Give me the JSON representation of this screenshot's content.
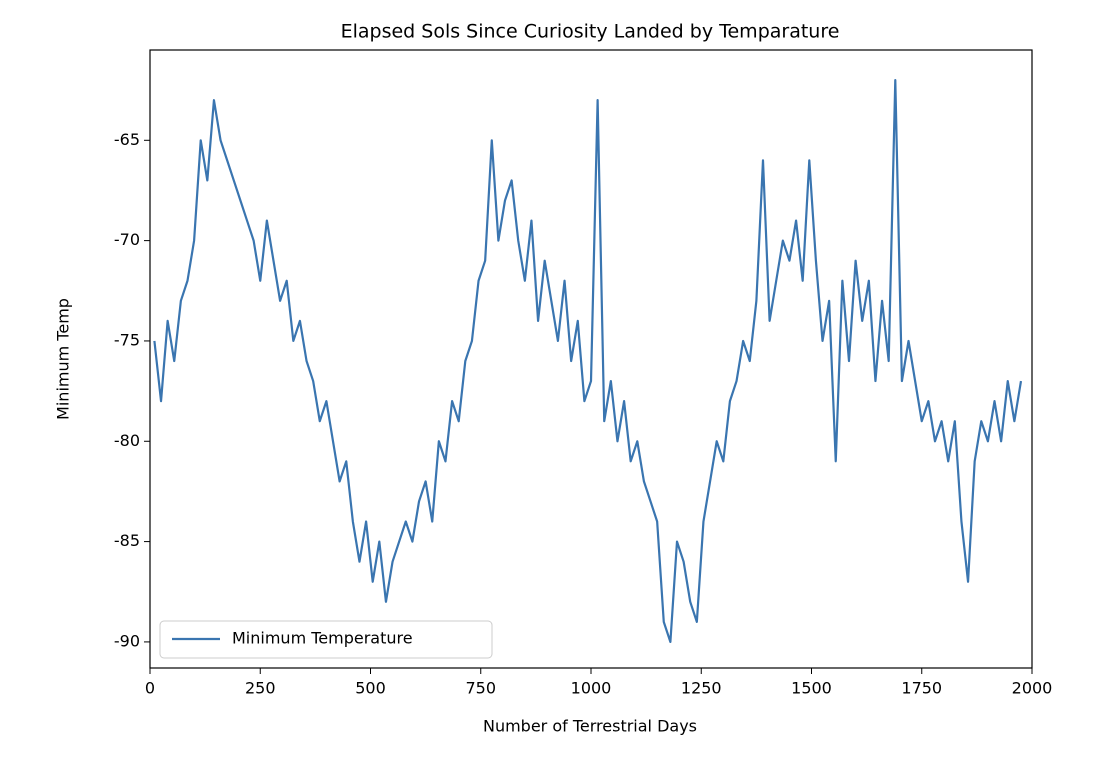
{
  "chart_data": {
    "type": "line",
    "title": "Elapsed Sols Since Curiosity Landed by Temparature",
    "xlabel": "Number of Terrestrial Days",
    "ylabel": "Minimum Temp",
    "xlim": [
      0,
      2000
    ],
    "ylim": [
      -91.3,
      -60.5
    ],
    "xticks": [
      0,
      250,
      500,
      750,
      1000,
      1250,
      1500,
      1750,
      2000
    ],
    "yticks": [
      -90,
      -85,
      -80,
      -75,
      -70,
      -65
    ],
    "legend": "lower left",
    "x": [
      10,
      25,
      40,
      55,
      70,
      85,
      100,
      115,
      130,
      145,
      160,
      175,
      190,
      205,
      220,
      235,
      250,
      265,
      280,
      295,
      310,
      325,
      340,
      355,
      370,
      385,
      400,
      415,
      430,
      445,
      460,
      475,
      490,
      505,
      520,
      535,
      550,
      565,
      580,
      595,
      610,
      625,
      640,
      655,
      670,
      685,
      700,
      715,
      730,
      745,
      760,
      775,
      790,
      805,
      820,
      835,
      850,
      865,
      880,
      895,
      910,
      925,
      940,
      955,
      970,
      985,
      1000,
      1015,
      1030,
      1045,
      1060,
      1075,
      1090,
      1105,
      1120,
      1135,
      1150,
      1165,
      1180,
      1195,
      1210,
      1225,
      1240,
      1255,
      1270,
      1285,
      1300,
      1315,
      1330,
      1345,
      1360,
      1375,
      1390,
      1405,
      1420,
      1435,
      1450,
      1465,
      1480,
      1495,
      1510,
      1525,
      1540,
      1555,
      1570,
      1585,
      1600,
      1615,
      1630,
      1645,
      1660,
      1675,
      1690,
      1705,
      1720,
      1735,
      1750,
      1765,
      1780,
      1795,
      1810,
      1825,
      1840,
      1855,
      1870,
      1885,
      1900,
      1915,
      1930,
      1945,
      1960,
      1975
    ],
    "series": [
      {
        "name": "Minimum Temperature",
        "color": "#3a75b0",
        "values": [
          -75,
          -78,
          -74,
          -76,
          -73,
          -72,
          -70,
          -65,
          -67,
          -63,
          -65,
          -66,
          -67,
          -68,
          -69,
          -70,
          -72,
          -69,
          -71,
          -73,
          -72,
          -75,
          -74,
          -76,
          -77,
          -79,
          -78,
          -80,
          -82,
          -81,
          -84,
          -86,
          -84,
          -87,
          -85,
          -88,
          -86,
          -85,
          -84,
          -85,
          -83,
          -82,
          -84,
          -80,
          -81,
          -78,
          -79,
          -76,
          -75,
          -72,
          -71,
          -65,
          -70,
          -68,
          -67,
          -70,
          -72,
          -69,
          -74,
          -71,
          -73,
          -75,
          -72,
          -76,
          -74,
          -78,
          -77,
          -63,
          -79,
          -77,
          -80,
          -78,
          -81,
          -80,
          -82,
          -83,
          -84,
          -89,
          -90,
          -85,
          -86,
          -88,
          -89,
          -84,
          -82,
          -80,
          -81,
          -78,
          -77,
          -75,
          -76,
          -73,
          -66,
          -74,
          -72,
          -70,
          -71,
          -69,
          -72,
          -66,
          -71,
          -75,
          -73,
          -81,
          -72,
          -76,
          -71,
          -74,
          -72,
          -77,
          -73,
          -76,
          -62,
          -77,
          -75,
          -77,
          -79,
          -78,
          -80,
          -79,
          -81,
          -79,
          -84,
          -87,
          -81,
          -79,
          -80,
          -78,
          -80,
          -77,
          -79,
          -77
        ]
      }
    ]
  }
}
